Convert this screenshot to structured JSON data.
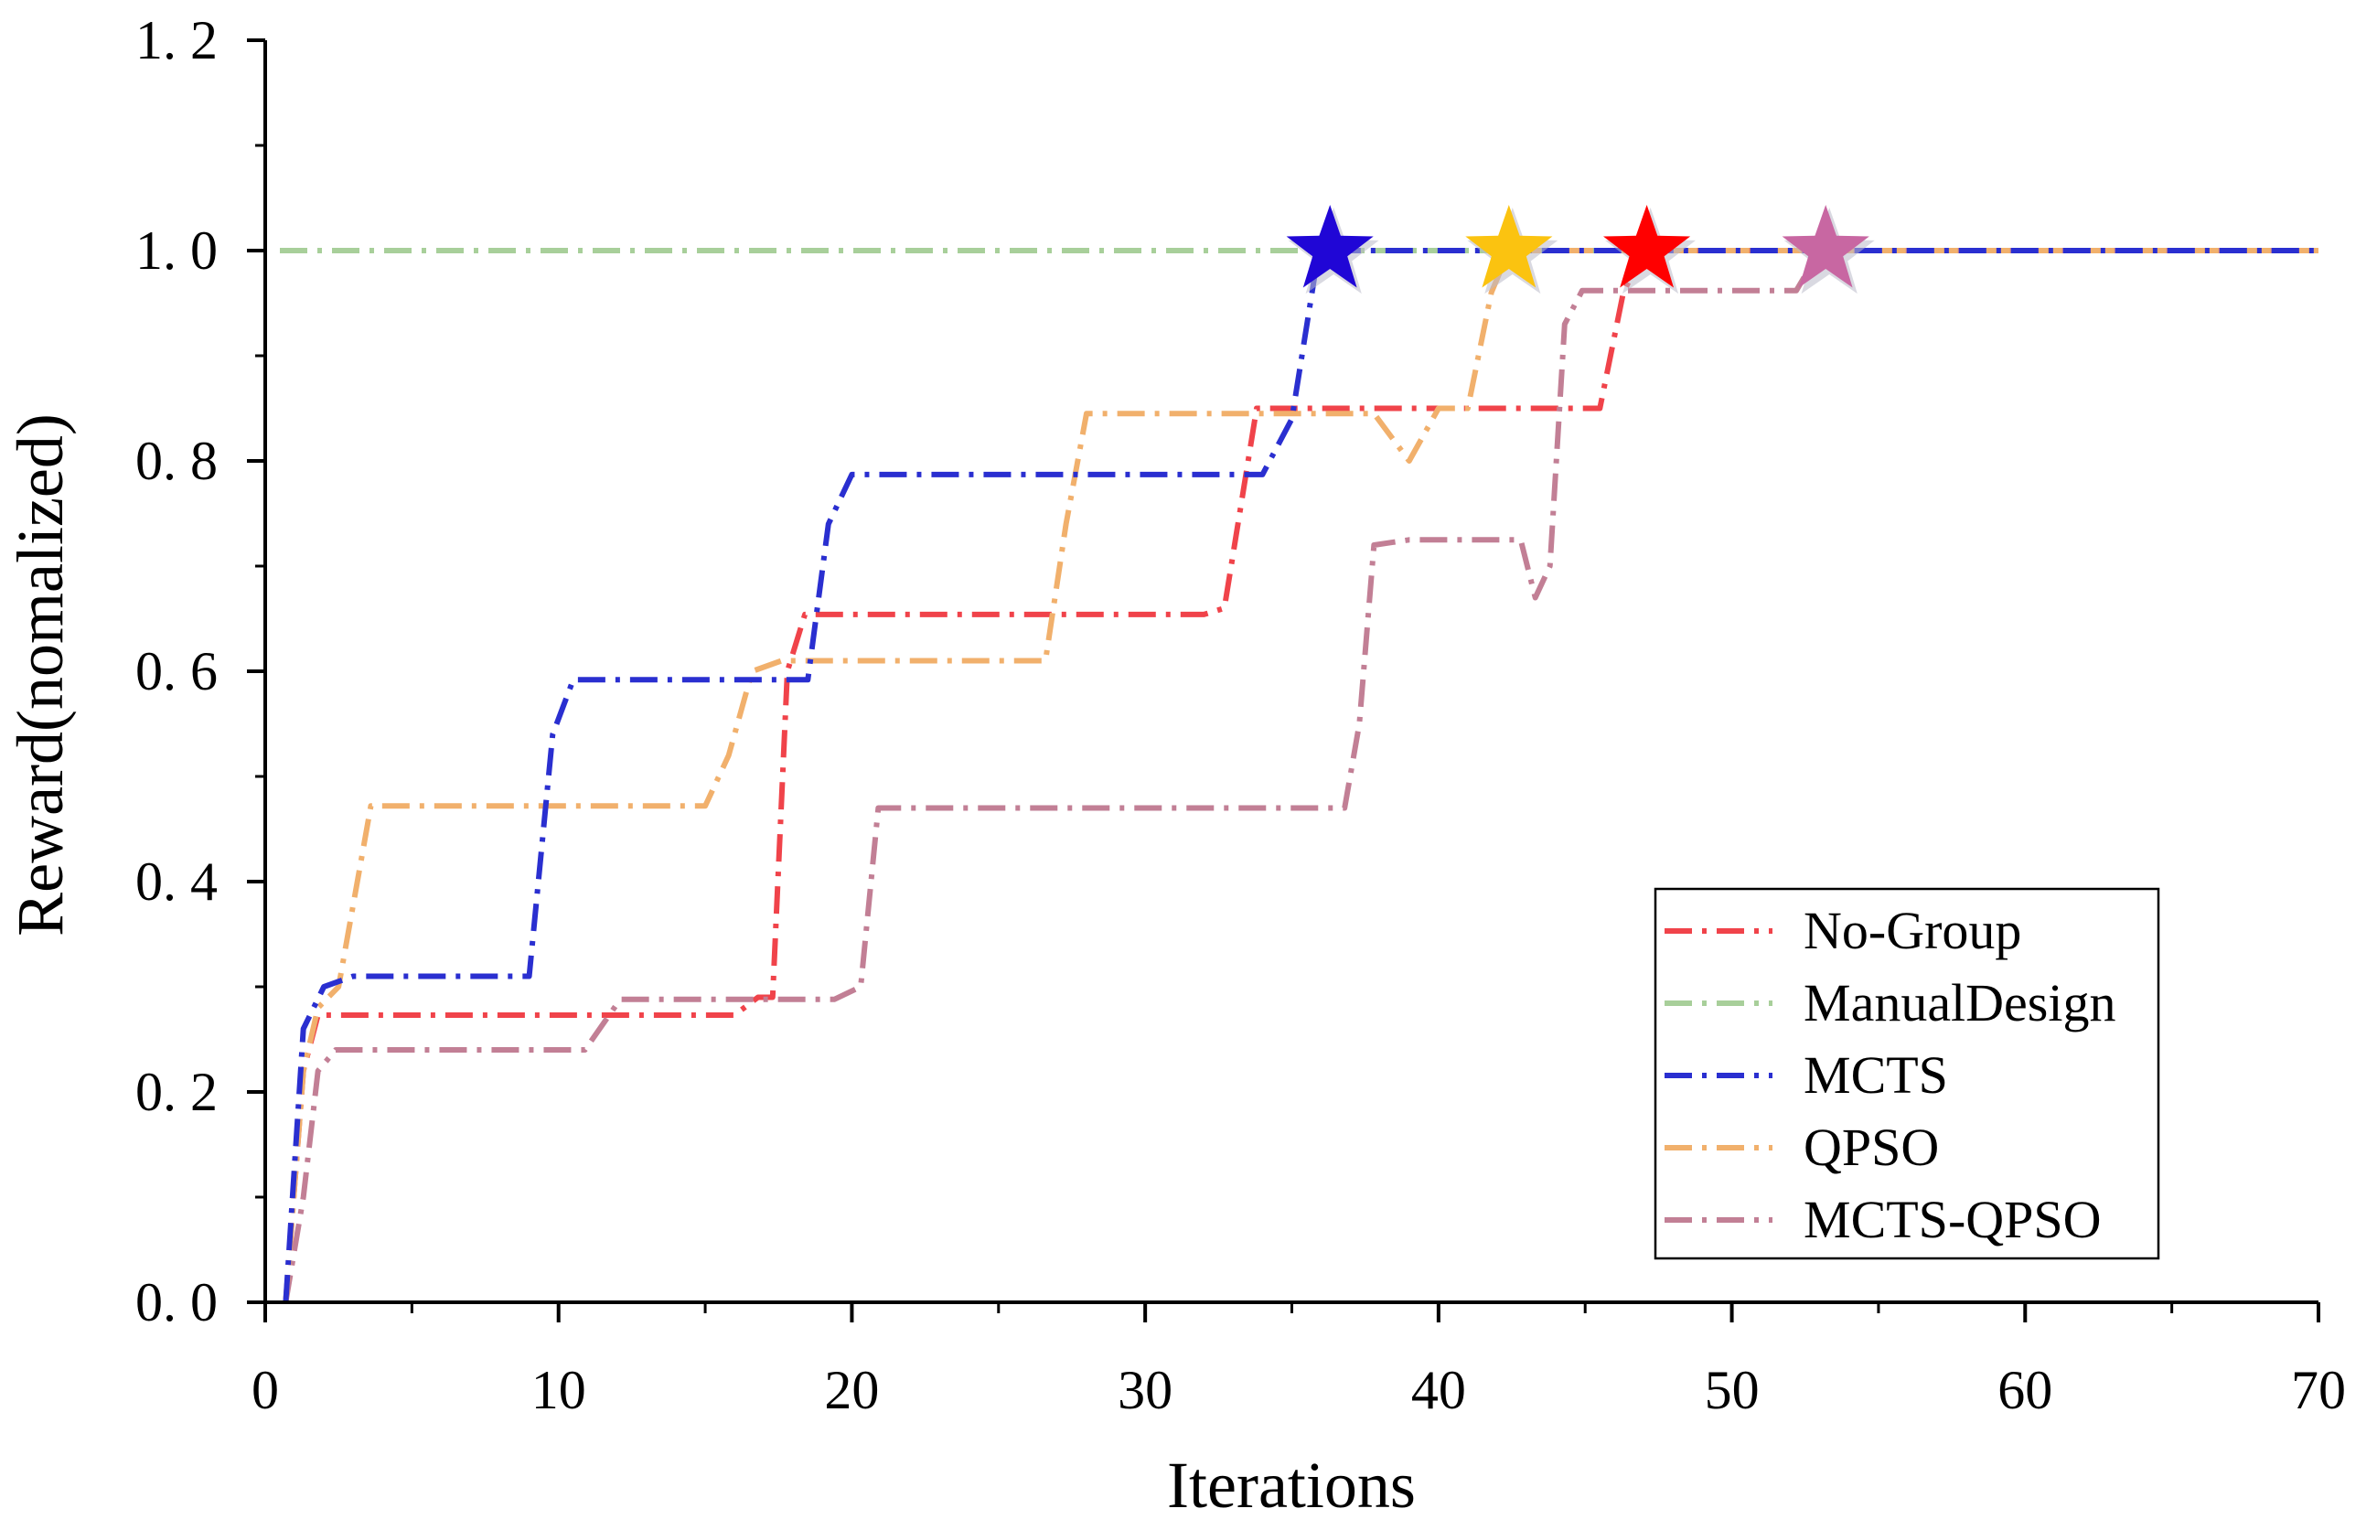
{
  "chart_data": {
    "type": "line",
    "title": "",
    "xlabel": "Iterations",
    "ylabel": "Reward(nomalized)",
    "xlim": [
      0,
      70
    ],
    "ylim": [
      0,
      1.2
    ],
    "x_ticks": [
      0,
      10,
      20,
      30,
      40,
      50,
      60,
      70
    ],
    "y_ticks": [
      0.0,
      0.2,
      0.4,
      0.6,
      0.8,
      1.0,
      1.2
    ],
    "x_tick_labels": [
      "0",
      "10",
      "20",
      "30",
      "40",
      "50",
      "60",
      "70"
    ],
    "y_tick_labels": [
      "0. 0",
      "0. 2",
      "0. 4",
      "0. 6",
      "0. 8",
      "1. 0",
      "1. 2"
    ],
    "grid": false,
    "legend_position": "bottom-right",
    "series": [
      {
        "name": "No-Group",
        "color": "#f0434a",
        "points": [
          [
            0.7,
            0
          ],
          [
            1.3,
            0.22
          ],
          [
            1.8,
            0.273
          ],
          [
            16,
            0.273
          ],
          [
            16.8,
            0.29
          ],
          [
            17.3,
            0.29
          ],
          [
            17.8,
            0.6
          ],
          [
            18.4,
            0.654
          ],
          [
            32,
            0.654
          ],
          [
            32.7,
            0.66
          ],
          [
            33.8,
            0.85
          ],
          [
            35,
            0.85
          ],
          [
            45,
            0.85
          ],
          [
            45.5,
            0.85
          ],
          [
            46.3,
            0.96
          ],
          [
            47,
            1.0
          ],
          [
            70,
            1.0
          ]
        ],
        "star": {
          "x": 47.1,
          "y": 1.0,
          "color": "#ff0000"
        }
      },
      {
        "name": "ManualDesign",
        "color": "#a8cf9a",
        "points": [
          [
            0.5,
            1.0
          ],
          [
            70,
            1.0
          ]
        ],
        "star": null
      },
      {
        "name": "MCTS",
        "color": "#2a2fd0",
        "points": [
          [
            0.7,
            0
          ],
          [
            1.3,
            0.26
          ],
          [
            2,
            0.3
          ],
          [
            3,
            0.31
          ],
          [
            9,
            0.31
          ],
          [
            9.8,
            0.54
          ],
          [
            10.5,
            0.592
          ],
          [
            18.5,
            0.592
          ],
          [
            19.2,
            0.74
          ],
          [
            20,
            0.787
          ],
          [
            34,
            0.787
          ],
          [
            35,
            0.84
          ],
          [
            35.8,
            0.98
          ],
          [
            36.2,
            1.0
          ],
          [
            70,
            1.0
          ]
        ],
        "star": {
          "x": 36.3,
          "y": 1.0,
          "color": "#2006d6"
        }
      },
      {
        "name": "QPSO",
        "color": "#f1b06c",
        "points": [
          [
            0.7,
            0
          ],
          [
            1.3,
            0.22
          ],
          [
            1.8,
            0.28
          ],
          [
            2.5,
            0.3
          ],
          [
            3.6,
            0.472
          ],
          [
            15,
            0.472
          ],
          [
            15.8,
            0.52
          ],
          [
            16.6,
            0.6
          ],
          [
            17.6,
            0.61
          ],
          [
            26.6,
            0.61
          ],
          [
            27.3,
            0.74
          ],
          [
            28,
            0.845
          ],
          [
            37.8,
            0.845
          ],
          [
            39,
            0.8
          ],
          [
            40,
            0.85
          ],
          [
            41,
            0.85
          ],
          [
            41.8,
            0.96
          ],
          [
            42.4,
            1.0
          ],
          [
            70,
            1.0
          ]
        ],
        "star": {
          "x": 42.4,
          "y": 1.0,
          "color": "#fbc310"
        }
      },
      {
        "name": "MCTS-QPSO",
        "color": "#c27f95",
        "points": [
          [
            0.7,
            0
          ],
          [
            1.3,
            0.1
          ],
          [
            1.8,
            0.22
          ],
          [
            2.4,
            0.24
          ],
          [
            10.9,
            0.24
          ],
          [
            12.1,
            0.288
          ],
          [
            19.4,
            0.288
          ],
          [
            20.3,
            0.3
          ],
          [
            20.9,
            0.47
          ],
          [
            36.8,
            0.47
          ],
          [
            37.3,
            0.55
          ],
          [
            37.8,
            0.72
          ],
          [
            39,
            0.725
          ],
          [
            42.8,
            0.725
          ],
          [
            43.3,
            0.67
          ],
          [
            43.8,
            0.7
          ],
          [
            44.3,
            0.93
          ],
          [
            44.9,
            0.962
          ],
          [
            52.2,
            0.962
          ],
          [
            53,
            1.0
          ],
          [
            70,
            1.0
          ]
        ],
        "star": {
          "x": 53.2,
          "y": 1.0,
          "color": "#c867a2"
        }
      }
    ]
  }
}
